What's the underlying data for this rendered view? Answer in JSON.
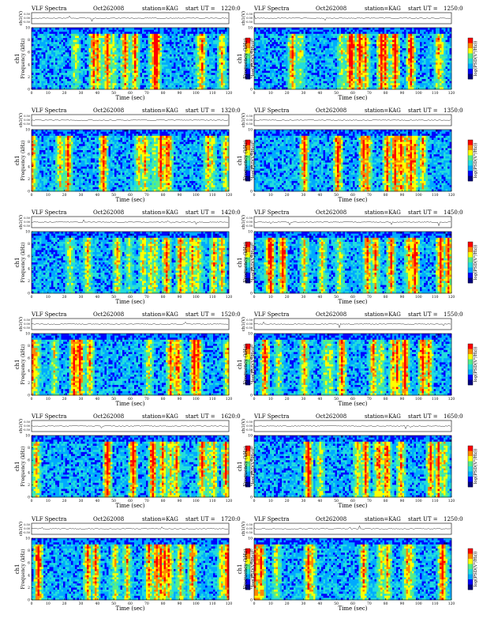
{
  "chart_data": {
    "type": "heatmap",
    "colormap": [
      "#000080",
      "#0000ff",
      "#00aaff",
      "#22dddd",
      "#55ee88",
      "#ffff00",
      "#ff8800",
      "#ff0000"
    ],
    "common": {
      "title": "VLF Spectra",
      "date": "Oct262008",
      "station": "station=KAG",
      "ut_prefix": "start  UT  =",
      "xlabel": "Time  (sec)",
      "ylabel_channel": "ch1",
      "ylabel_freq": "Frequency  (kHz)",
      "ylabel_wave": "ch1(V)",
      "colorbar_label": "log(PSD(V²/Hz))",
      "xlim": [
        0,
        120
      ],
      "ylim": [
        0,
        10
      ],
      "wave_ylim": [
        -0.5,
        0.5
      ],
      "wave_ticks": [
        "0.50",
        "0.00",
        "-0.50"
      ]
    },
    "panels": [
      {
        "start_ut": "1220:0",
        "x_ticks": [
          0,
          10,
          20,
          30,
          40,
          50,
          60,
          70,
          80,
          90,
          100,
          110,
          120
        ],
        "y_ticks": [
          0,
          2,
          4,
          6,
          8,
          10
        ]
      },
      {
        "start_ut": "1250:0",
        "x_ticks": [
          0,
          10,
          20,
          30,
          40,
          50,
          60,
          70,
          80,
          90,
          100,
          110,
          120
        ],
        "y_ticks": [
          0,
          2,
          4,
          6,
          8,
          10
        ]
      },
      {
        "start_ut": "1320:0",
        "x_ticks": [
          0,
          10,
          20,
          30,
          40,
          50,
          60,
          70,
          80,
          90,
          100,
          110,
          120
        ],
        "y_ticks": [
          0,
          2,
          4,
          6,
          8,
          10
        ]
      },
      {
        "start_ut": "1350:0",
        "x_ticks": [
          0,
          10,
          20,
          30,
          40,
          50,
          60,
          70,
          80,
          90,
          100,
          110,
          120
        ],
        "y_ticks": [
          0,
          2,
          4,
          6,
          8,
          10
        ]
      },
      {
        "start_ut": "1420:0",
        "x_ticks": [
          0,
          10,
          20,
          30,
          40,
          50,
          60,
          70,
          80,
          90,
          100,
          110,
          120
        ],
        "y_ticks": [
          0,
          2,
          4,
          6,
          8,
          10
        ]
      },
      {
        "start_ut": "1450:0",
        "x_ticks": [
          0,
          10,
          20,
          30,
          40,
          50,
          60,
          70,
          80,
          90,
          100,
          110,
          120
        ],
        "y_ticks": [
          0,
          2,
          4,
          6,
          8,
          10
        ]
      },
      {
        "start_ut": "1520:0",
        "x_ticks": [
          0,
          10,
          20,
          30,
          40,
          50,
          60,
          70,
          80,
          90,
          100,
          110,
          120
        ],
        "y_ticks": [
          0,
          2,
          4,
          6,
          8,
          10
        ]
      },
      {
        "start_ut": "1550:0",
        "x_ticks": [
          0,
          10,
          20,
          30,
          40,
          50,
          60,
          70,
          80,
          90,
          100,
          110,
          120
        ],
        "y_ticks": [
          0,
          2,
          4,
          6,
          8,
          10
        ]
      },
      {
        "start_ut": "1620:0",
        "x_ticks": [
          0,
          10,
          20,
          30,
          40,
          50,
          60,
          70,
          80,
          90,
          100,
          110,
          120
        ],
        "y_ticks": [
          0,
          2,
          4,
          6,
          8,
          10
        ]
      },
      {
        "start_ut": "1650:0",
        "x_ticks": [
          0,
          10,
          20,
          30,
          40,
          50,
          60,
          70,
          80,
          90,
          100,
          110,
          120
        ],
        "y_ticks": [
          0,
          2,
          4,
          6,
          8,
          10
        ]
      },
      {
        "start_ut": "1720:0",
        "x_ticks": [
          0,
          10,
          20,
          30,
          40,
          50,
          60,
          70,
          80,
          90,
          100,
          110,
          120
        ],
        "y_ticks": [
          0,
          2,
          4,
          6,
          8,
          10
        ]
      },
      {
        "start_ut": "1250:0",
        "x_ticks": [
          0,
          10,
          20,
          30,
          40,
          50,
          60,
          70,
          80,
          90,
          100,
          110,
          120
        ],
        "y_ticks": [
          0,
          2,
          4,
          6,
          8,
          10
        ]
      }
    ]
  }
}
